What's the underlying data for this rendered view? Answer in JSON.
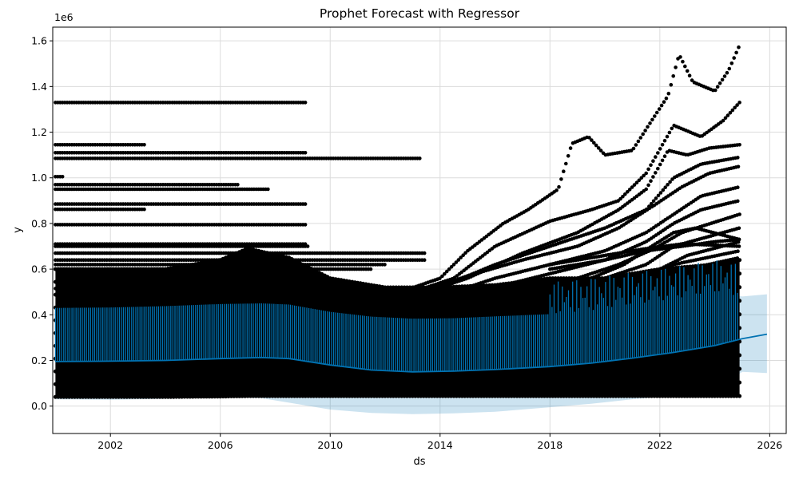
{
  "chart_data": {
    "type": "scatter",
    "title": "Prophet Forecast with Regressor",
    "xlabel": "ds",
    "ylabel": "y",
    "y_offset_text": "1e6",
    "xlim": [
      1999.9,
      2026.6
    ],
    "ylim": [
      -120000,
      1660000
    ],
    "x_ticks": [
      2002,
      2006,
      2010,
      2014,
      2018,
      2022,
      2026
    ],
    "y_ticks": [
      0,
      200000,
      400000,
      600000,
      800000,
      1000000,
      1200000,
      1400000,
      1600000
    ],
    "y_tick_labels": [
      "0.0",
      "0.2",
      "0.4",
      "0.6",
      "0.8",
      "1.0",
      "1.2",
      "1.4",
      "1.6"
    ],
    "grid": true,
    "colors": {
      "observed": "#000000",
      "forecast": "#0072B2",
      "interval": "#0072B2"
    },
    "series": [
      {
        "role": "forecast",
        "x": [
          2000.0,
          2002.0,
          2004.0,
          2006.0,
          2007.5,
          2008.5,
          2010.0,
          2011.5,
          2013.0,
          2014.5,
          2016.0,
          2018.0,
          2019.5,
          2021.0,
          2022.5,
          2024.0,
          2025.0,
          2025.9
        ],
        "y": [
          195000,
          197000,
          200000,
          208000,
          213000,
          208000,
          180000,
          158000,
          150000,
          153000,
          160000,
          173000,
          188000,
          210000,
          235000,
          265000,
          295000,
          315000
        ]
      },
      {
        "role": "interval",
        "x": [
          2000.0,
          2002.0,
          2004.0,
          2006.0,
          2007.5,
          2008.5,
          2010.0,
          2011.5,
          2013.0,
          2014.5,
          2016.0,
          2018.0,
          2019.5,
          2021.0,
          2022.5,
          2024.0,
          2025.0,
          2025.9
        ],
        "upper": [
          430000,
          432000,
          438000,
          447000,
          450000,
          445000,
          413000,
          392000,
          383000,
          385000,
          393000,
          403000,
          420000,
          445000,
          470000,
          500000,
          480000,
          490000
        ],
        "lower": [
          30000,
          28000,
          32000,
          38000,
          35000,
          15000,
          -15000,
          -30000,
          -35000,
          -32000,
          -25000,
          -5000,
          10000,
          30000,
          45000,
          60000,
          150000,
          145000
        ]
      }
    ],
    "observed_lines": [
      {
        "x_start": 2000.0,
        "x_end": 2009.1,
        "y": 1330000
      },
      {
        "x_start": 2000.0,
        "x_end": 2003.3,
        "y": 1145000
      },
      {
        "x_start": 2000.0,
        "x_end": 2009.1,
        "y": 1110000
      },
      {
        "x_start": 2000.0,
        "x_end": 2013.3,
        "y": 1085000
      },
      {
        "x_start": 2000.0,
        "x_end": 2000.3,
        "y": 1005000
      },
      {
        "x_start": 2000.0,
        "x_end": 2006.7,
        "y": 970000
      },
      {
        "x_start": 2000.0,
        "x_end": 2007.8,
        "y": 950000
      },
      {
        "x_start": 2000.0,
        "x_end": 2009.1,
        "y": 885000
      },
      {
        "x_start": 2000.0,
        "x_end": 2003.3,
        "y": 862000
      },
      {
        "x_start": 2000.0,
        "x_end": 2009.1,
        "y": 795000
      },
      {
        "x_start": 2000.0,
        "x_end": 2009.1,
        "y": 710000
      },
      {
        "x_start": 2000.0,
        "x_end": 2009.2,
        "y": 700000
      },
      {
        "x_start": 2000.0,
        "x_end": 2013.5,
        "y": 670000
      },
      {
        "x_start": 2000.0,
        "x_end": 2013.5,
        "y": 640000
      },
      {
        "x_start": 2000.0,
        "x_end": 2012.0,
        "y": 620000
      },
      {
        "x_start": 2000.0,
        "x_end": 2011.5,
        "y": 600000
      },
      {
        "x_start": 2000.0,
        "x_end": 2012.3,
        "y": 515000
      }
    ],
    "observed_curves": [
      {
        "x": [
          2012.8,
          2014.0,
          2015.0,
          2016.3,
          2017.2,
          2018.3,
          2018.8,
          2019.4,
          2020.0,
          2021.0,
          2021.7,
          2022.3,
          2022.7,
          2023.2,
          2024.0,
          2024.5,
          2024.9
        ],
        "y": [
          510000,
          560000,
          680000,
          800000,
          860000,
          950000,
          1150000,
          1180000,
          1100000,
          1120000,
          1250000,
          1360000,
          1540000,
          1420000,
          1380000,
          1470000,
          1580000
        ]
      },
      {
        "x": [
          2013.0,
          2014.5,
          2016.0,
          2018.0,
          2019.5,
          2020.5,
          2021.5,
          2022.5,
          2023.5,
          2024.3,
          2024.9
        ],
        "y": [
          500000,
          560000,
          700000,
          810000,
          860000,
          900000,
          1020000,
          1230000,
          1180000,
          1250000,
          1330000
        ]
      },
      {
        "x": [
          2013.0,
          2015.0,
          2017.0,
          2019.0,
          2020.5,
          2021.5,
          2022.3,
          2023.0,
          2023.8,
          2024.9
        ],
        "y": [
          480000,
          560000,
          670000,
          760000,
          860000,
          950000,
          1120000,
          1100000,
          1130000,
          1145000
        ]
      },
      {
        "x": [
          2012.0,
          2014.0,
          2016.0,
          2018.0,
          2020.0,
          2021.5,
          2022.5,
          2023.5,
          2024.9
        ],
        "y": [
          470000,
          520000,
          620000,
          700000,
          780000,
          860000,
          1000000,
          1060000,
          1090000
        ]
      },
      {
        "x": [
          2011.0,
          2013.0,
          2015.0,
          2017.0,
          2019.0,
          2020.5,
          2021.8,
          2022.8,
          2023.8,
          2024.9
        ],
        "y": [
          460000,
          490000,
          570000,
          640000,
          700000,
          780000,
          880000,
          960000,
          1020000,
          1050000
        ]
      },
      {
        "x": [
          2012.0,
          2014.0,
          2016.0,
          2018.0,
          2020.0,
          2021.5,
          2022.5,
          2023.5,
          2024.9
        ],
        "y": [
          440000,
          480000,
          560000,
          620000,
          680000,
          760000,
          840000,
          920000,
          960000
        ]
      },
      {
        "x": [
          2012.0,
          2014.0,
          2016.0,
          2018.0,
          2020.0,
          2021.5,
          2022.5,
          2023.5,
          2024.9
        ],
        "y": [
          420000,
          460000,
          520000,
          580000,
          640000,
          720000,
          800000,
          860000,
          900000
        ]
      },
      {
        "x": [
          2013.0,
          2015.0,
          2017.0,
          2019.0,
          2020.5,
          2021.8,
          2022.8,
          2024.9
        ],
        "y": [
          410000,
          450000,
          500000,
          560000,
          620000,
          690000,
          760000,
          840000
        ]
      },
      {
        "x": [
          2014.0,
          2016.0,
          2018.0,
          2020.0,
          2021.5,
          2022.5,
          2024.9
        ],
        "y": [
          400000,
          440000,
          500000,
          560000,
          620000,
          700000,
          780000
        ]
      },
      {
        "x": [
          2015.0,
          2017.0,
          2019.0,
          2020.5,
          2022.0,
          2023.0,
          2024.9
        ],
        "y": [
          390000,
          420000,
          470000,
          520000,
          600000,
          660000,
          720000
        ]
      },
      {
        "x": [
          2016.0,
          2018.0,
          2020.0,
          2021.5,
          2022.5,
          2024.9
        ],
        "y": [
          400000,
          440000,
          490000,
          560000,
          620000,
          680000
        ]
      },
      {
        "x": [
          2017.0,
          2019.0,
          2020.5,
          2022.0,
          2023.0,
          2024.9
        ],
        "y": [
          410000,
          450000,
          500000,
          560000,
          600000,
          650000
        ]
      },
      {
        "x": [
          2018.0,
          2019.5,
          2020.7,
          2021.7,
          2022.5,
          2023.3,
          2024.9
        ],
        "y": [
          500000,
          560000,
          620000,
          700000,
          760000,
          780000,
          730000
        ]
      },
      {
        "x": [
          2018.0,
          2020.0,
          2021.5,
          2022.8,
          2024.0,
          2024.9
        ],
        "y": [
          600000,
          640000,
          680000,
          700000,
          720000,
          730000
        ]
      },
      {
        "x": [
          2018.0,
          2020.0,
          2021.5,
          2022.8,
          2024.0,
          2024.9
        ],
        "y": [
          620000,
          660000,
          690000,
          710000,
          705000,
          700000
        ]
      }
    ],
    "observed_dense_band": {
      "x": [
        2000.0,
        2004.0,
        2006.0,
        2007.0,
        2008.5,
        2010.0,
        2012.0,
        2014.0,
        2016.0,
        2018.0,
        2020.0,
        2022.0,
        2024.0,
        2024.9
      ],
      "upper": [
        600000,
        600000,
        640000,
        690000,
        650000,
        560000,
        520000,
        520000,
        530000,
        560000,
        560000,
        600000,
        620000,
        640000
      ],
      "lower": [
        40000,
        40000,
        42000,
        44000,
        44000,
        44000,
        44000,
        44000,
        44000,
        44000,
        44000,
        44000,
        44000,
        44000
      ]
    }
  }
}
